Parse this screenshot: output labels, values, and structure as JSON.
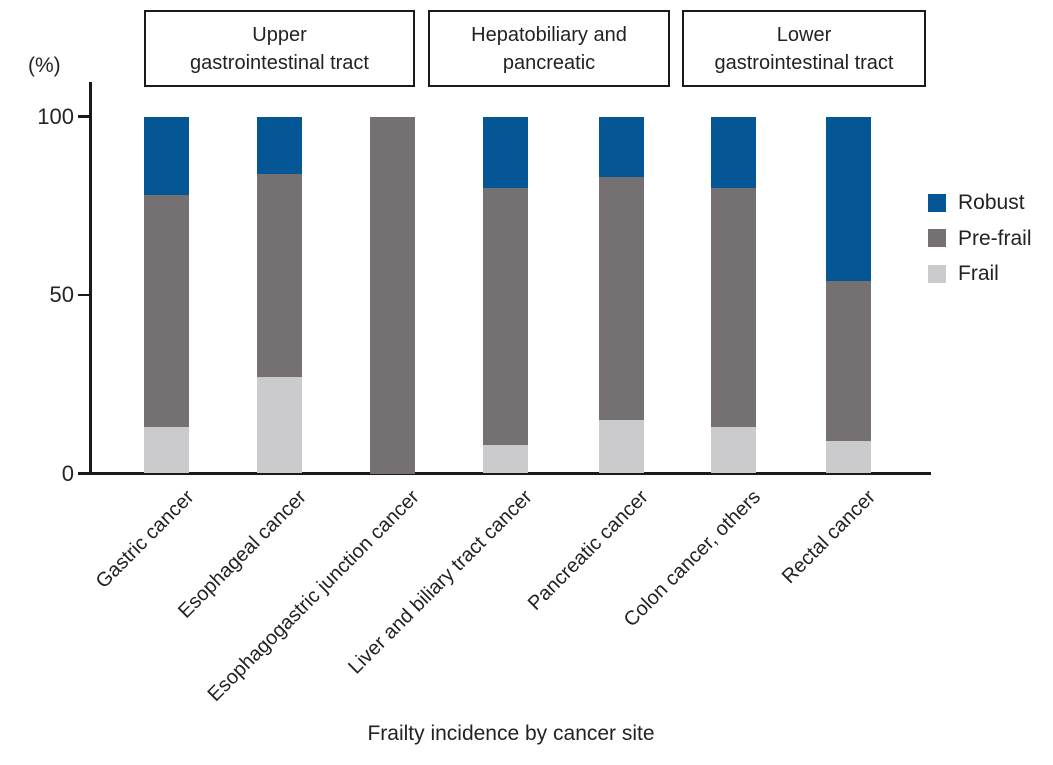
{
  "chart_data": {
    "type": "bar",
    "stacked": true,
    "title": "Frailty incidence by cancer site",
    "y_unit_label": "(%)",
    "ylim": [
      0,
      100
    ],
    "y_ticks": [
      0,
      50,
      100
    ],
    "grid": false,
    "categories": [
      "Gastric cancer",
      "Esophageal cancer",
      "Esophagogastric junction cancer",
      "Liver and biliary tract cancer",
      "Pancreatic cancer",
      "Colon cancer, others",
      "Rectal cancer"
    ],
    "category_groups": [
      {
        "label_lines": [
          "Upper",
          "gastrointestinal tract"
        ],
        "category_indexes": [
          0,
          1,
          2
        ]
      },
      {
        "label_lines": [
          "Hepatobiliary and",
          "pancreatic"
        ],
        "category_indexes": [
          3,
          4
        ]
      },
      {
        "label_lines": [
          "Lower",
          "gastrointestinal tract"
        ],
        "category_indexes": [
          5,
          6
        ]
      }
    ],
    "series": [
      {
        "name": "Robust",
        "color": "#055694",
        "values": [
          22,
          16,
          0,
          20,
          17,
          20,
          46
        ]
      },
      {
        "name": "Pre-frail",
        "color": "#757172",
        "values": [
          65,
          57,
          100,
          72,
          68,
          67,
          45
        ]
      },
      {
        "name": "Frail",
        "color": "#cbcbcd",
        "values": [
          13,
          27,
          0,
          8,
          15,
          13,
          9
        ]
      }
    ],
    "legend": {
      "position": "right",
      "entries": [
        "Robust",
        "Pre-frail",
        "Frail"
      ]
    }
  }
}
